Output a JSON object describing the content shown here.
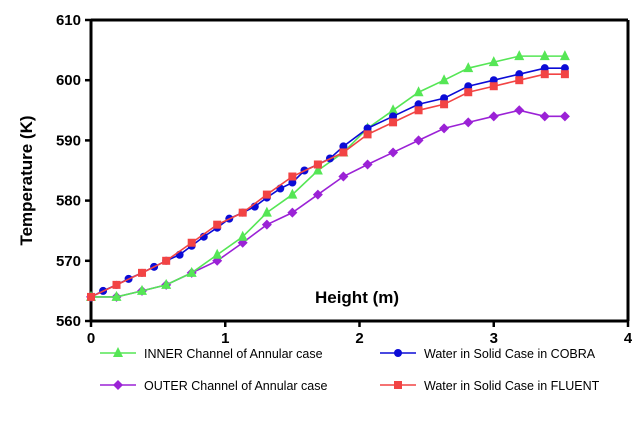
{
  "chart_data": {
    "type": "line",
    "title": "",
    "xlabel": "Height (m)",
    "ylabel": "Temperature (K)",
    "xlim": [
      0,
      4
    ],
    "ylim": [
      560,
      610
    ],
    "xticks": [
      "0",
      "1",
      "2",
      "3",
      "4"
    ],
    "yticks": [
      "560",
      "570",
      "580",
      "590",
      "600",
      "610"
    ],
    "grid": false,
    "legend": "bottom",
    "series": [
      {
        "name": "INNER Channel of Annular case",
        "color": "#55e655",
        "marker": "triangle",
        "x": [
          0,
          0.19,
          0.38,
          0.56,
          0.75,
          0.94,
          1.13,
          1.31,
          1.5,
          1.69,
          1.88,
          2.06,
          2.25,
          2.44,
          2.63,
          2.81,
          3.0,
          3.19,
          3.38,
          3.53
        ],
        "y": [
          564,
          564,
          565,
          566,
          568,
          571,
          574,
          578,
          581,
          585,
          588,
          592,
          595,
          598,
          600,
          602,
          603,
          604,
          604,
          604
        ]
      },
      {
        "name": "Water in Solid Case in COBRA",
        "color": "#0b0bd6",
        "marker": "circle",
        "x": [
          0,
          0.09,
          0.19,
          0.28,
          0.38,
          0.47,
          0.56,
          0.66,
          0.75,
          0.84,
          0.94,
          1.03,
          1.13,
          1.22,
          1.31,
          1.41,
          1.5,
          1.59,
          1.69,
          1.78,
          1.88,
          2.06,
          2.25,
          2.44,
          2.63,
          2.81,
          3.0,
          3.19,
          3.38,
          3.53
        ],
        "y": [
          564,
          565,
          566,
          567,
          568,
          569,
          570,
          571,
          572.5,
          574,
          575.5,
          577,
          578,
          579,
          580.5,
          582,
          583,
          585,
          586,
          587,
          589,
          592,
          594,
          596,
          597,
          599,
          600,
          601,
          602,
          602
        ]
      },
      {
        "name": "OUTER Channel of Annular case",
        "color": "#9b22d6",
        "marker": "diamond",
        "x": [
          0,
          0.19,
          0.38,
          0.56,
          0.75,
          0.94,
          1.13,
          1.31,
          1.5,
          1.69,
          1.88,
          2.06,
          2.25,
          2.44,
          2.63,
          2.81,
          3.0,
          3.19,
          3.38,
          3.53
        ],
        "y": [
          564,
          564,
          565,
          566,
          568,
          570,
          573,
          576,
          578,
          581,
          584,
          586,
          588,
          590,
          592,
          593,
          594,
          595,
          594,
          594
        ]
      },
      {
        "name": "Water in Solid Case in FLUENT",
        "color": "#f24444",
        "marker": "square",
        "x": [
          0,
          0.19,
          0.38,
          0.56,
          0.75,
          0.94,
          1.13,
          1.31,
          1.5,
          1.69,
          1.88,
          2.06,
          2.25,
          2.44,
          2.63,
          2.81,
          3.0,
          3.19,
          3.38,
          3.53
        ],
        "y": [
          564,
          566,
          568,
          570,
          573,
          576,
          578,
          581,
          584,
          586,
          588,
          591,
          593,
          595,
          596,
          598,
          599,
          600,
          601,
          601
        ]
      }
    ]
  }
}
